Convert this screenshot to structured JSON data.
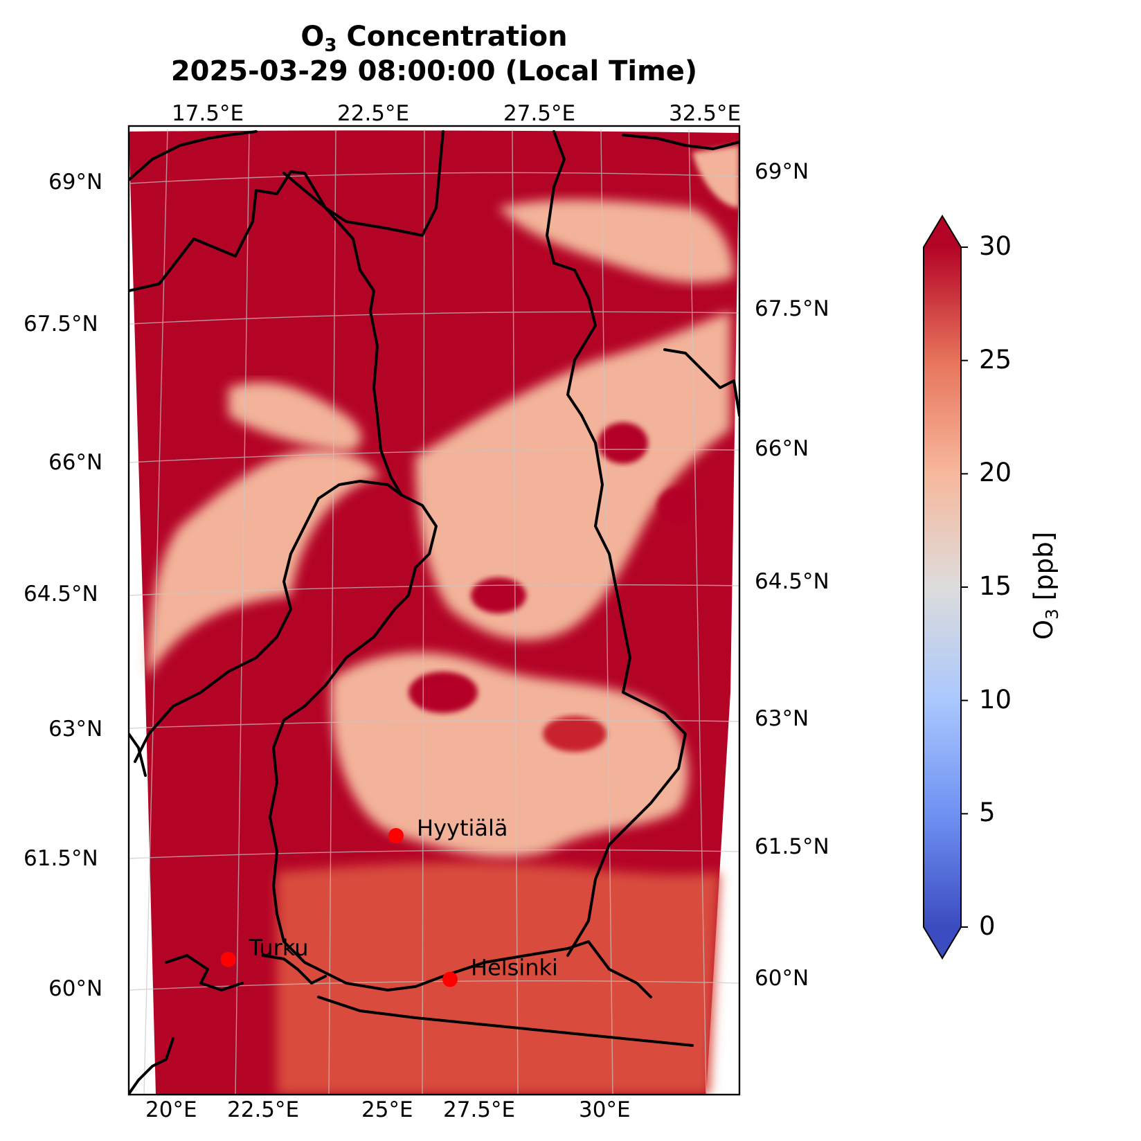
{
  "title": {
    "prefix": "O",
    "subscript": "3",
    "suffix": " Concentration",
    "line2": "2025-03-29 08:00:00 (Local Time)"
  },
  "map": {
    "lon_ticks_top": [
      "17.5°E",
      "22.5°E",
      "27.5°E",
      "32.5°E"
    ],
    "lon_ticks_bottom": [
      "20°E",
      "22.5°E",
      "25°E",
      "27.5°E",
      "30°E"
    ],
    "lat_ticks_left": [
      "69°N",
      "67.5°N",
      "66°N",
      "64.5°N",
      "63°N",
      "61.5°N",
      "60°N"
    ],
    "lat_ticks_right": [
      "69°N",
      "67.5°N",
      "66°N",
      "64.5°N",
      "63°N",
      "61.5°N",
      "60°N"
    ],
    "cities": [
      {
        "name": "Hyytiälä",
        "lon": 24.29,
        "lat": 61.85
      },
      {
        "name": "Turku",
        "lon": 22.27,
        "lat": 60.45
      },
      {
        "name": "Helsinki",
        "lon": 24.94,
        "lat": 60.17
      }
    ],
    "marker_color": "#ff0000",
    "gridlines": true
  },
  "colorbar": {
    "label_prefix": "O",
    "label_subscript": "3",
    "label_suffix": " [ppb]",
    "ticks": [
      "0",
      "5",
      "10",
      "15",
      "20",
      "25",
      "30"
    ],
    "vmin": 0,
    "vmax": 30,
    "extend": "both",
    "colormap": "coolwarm",
    "stops": [
      "#3b4cc0",
      "#6f92f3",
      "#aac7fd",
      "#dddcdc",
      "#f7b89c",
      "#e7745b",
      "#b40426"
    ]
  },
  "field_colors": {
    "high": "#b40426",
    "mid": "#dd5f4b",
    "low": "#f2b39a"
  }
}
